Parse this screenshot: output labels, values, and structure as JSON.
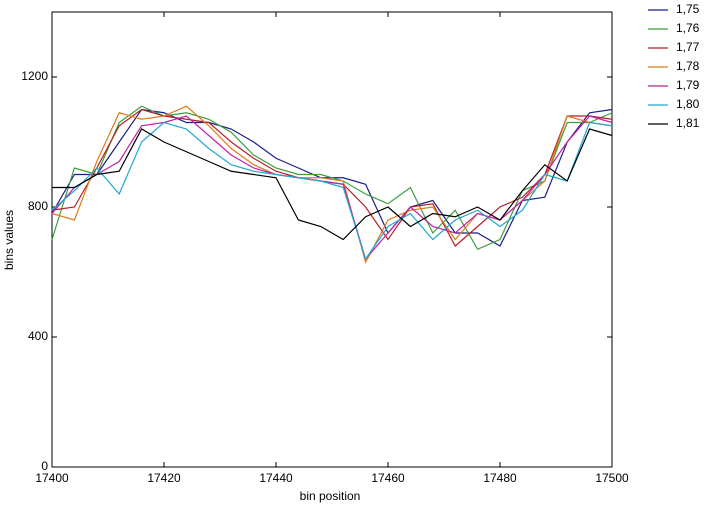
{
  "chart_data": {
    "type": "line",
    "x_label": "bin position",
    "y_label": "bins values",
    "x": [
      17400,
      17404,
      17408,
      17412,
      17416,
      17420,
      17424,
      17428,
      17432,
      17436,
      17440,
      17444,
      17448,
      17452,
      17456,
      17460,
      17464,
      17468,
      17472,
      17476,
      17480,
      17484,
      17488,
      17492,
      17496,
      17500
    ],
    "xlim": [
      17400,
      17500
    ],
    "xticks": [
      17400,
      17420,
      17440,
      17460,
      17480,
      17500
    ],
    "ylim": [
      0,
      1400
    ],
    "yticks": [
      0,
      400,
      800,
      1200
    ],
    "legend": "outside-right",
    "series": [
      {
        "name": "1,75",
        "color": "#1c1c8c",
        "values": [
          780,
          900,
          900,
          1000,
          1100,
          1090,
          1060,
          1060,
          1040,
          1000,
          950,
          920,
          890,
          890,
          870,
          720,
          800,
          820,
          720,
          720,
          680,
          820,
          830,
          1000,
          1090,
          1100
        ]
      },
      {
        "name": "1,76",
        "color": "#3a9e3a",
        "values": [
          700,
          920,
          900,
          1060,
          1110,
          1080,
          1090,
          1070,
          1030,
          960,
          920,
          900,
          900,
          880,
          840,
          810,
          860,
          720,
          790,
          670,
          700,
          850,
          880,
          1060,
          1060,
          1090
        ]
      },
      {
        "name": "1,77",
        "color": "#b4202a",
        "values": [
          790,
          800,
          920,
          1050,
          1100,
          1080,
          1070,
          1060,
          1000,
          950,
          910,
          890,
          880,
          870,
          800,
          700,
          800,
          810,
          680,
          740,
          800,
          830,
          900,
          1080,
          1080,
          1070
        ]
      },
      {
        "name": "1,78",
        "color": "#e07b1a",
        "values": [
          780,
          760,
          940,
          1090,
          1070,
          1080,
          1110,
          1050,
          980,
          930,
          900,
          890,
          890,
          880,
          630,
          760,
          790,
          800,
          700,
          780,
          760,
          820,
          880,
          1080,
          1060,
          1050
        ]
      },
      {
        "name": "1,79",
        "color": "#c020a8",
        "values": [
          780,
          860,
          900,
          940,
          1050,
          1060,
          1080,
          1020,
          960,
          920,
          900,
          890,
          880,
          870,
          640,
          720,
          800,
          740,
          720,
          780,
          760,
          820,
          900,
          1000,
          1080,
          1060
        ]
      },
      {
        "name": "1,80",
        "color": "#20a8d0",
        "values": [
          790,
          850,
          920,
          840,
          1000,
          1060,
          1040,
          980,
          930,
          910,
          900,
          890,
          880,
          860,
          640,
          740,
          780,
          700,
          760,
          790,
          740,
          790,
          900,
          880,
          1060,
          1050
        ]
      },
      {
        "name": "1,81",
        "color": "#000000",
        "values": [
          860,
          860,
          900,
          910,
          1040,
          1000,
          970,
          940,
          910,
          900,
          890,
          760,
          740,
          700,
          770,
          800,
          740,
          780,
          770,
          800,
          760,
          850,
          930,
          880,
          1040,
          1020
        ]
      }
    ]
  }
}
